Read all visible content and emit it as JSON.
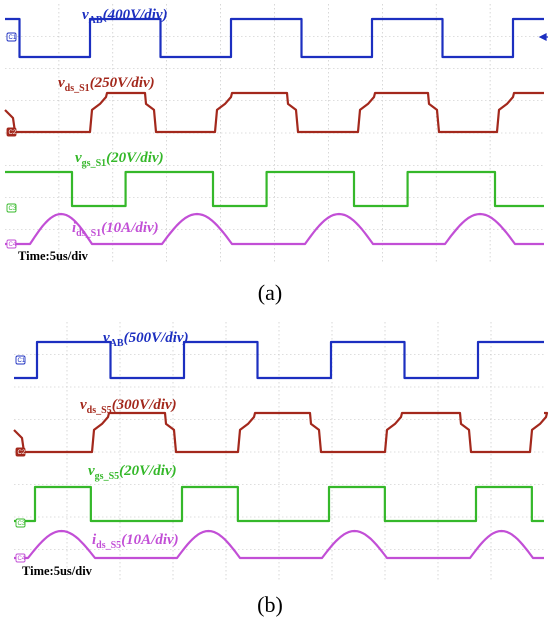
{
  "chart_data": [
    {
      "type": "line",
      "caption": "(a)",
      "time_label": "Time:5us/div",
      "grid": true,
      "series": [
        {
          "name": "v",
          "subscript": "AB",
          "scale": "(400V/div)",
          "color": "#1c2fc0",
          "marker": "C1",
          "wave": "square",
          "first": 90,
          "period": 141,
          "duty": 0.5,
          "start_high": true
        },
        {
          "name": "v",
          "subscript": "ds_S1",
          "scale": "(250V/div)",
          "color": "#a3281c",
          "marker": "C2",
          "wave": "drain",
          "rises": [
            90,
            215,
            358,
            497
          ],
          "falls": [
            145,
            287,
            428
          ]
        },
        {
          "name": "v",
          "subscript": "gs_S1",
          "scale": "(20V/div)",
          "color": "#35b82a",
          "marker": "C3",
          "wave": "square",
          "first": 72,
          "period": 141,
          "duty": 0.38,
          "start_high": true
        },
        {
          "name": "i",
          "subscript": "ds_S1",
          "scale": "(10A/div)",
          "color": "#c24fd6",
          "marker": "C4",
          "wave": "current",
          "humps": [
            [
              30,
              92
            ],
            [
              162,
              232
            ],
            [
              305,
              373
            ],
            [
              445,
              515
            ]
          ]
        }
      ]
    },
    {
      "type": "line",
      "caption": "(b)",
      "time_label": "Time:5us/div",
      "grid": true,
      "series": [
        {
          "name": "v",
          "subscript": "AB",
          "scale": "(500V/div)",
          "color": "#1c2fc0",
          "marker": "C1",
          "wave": "square",
          "first": 37,
          "period": 147,
          "duty": 0.5,
          "start_high": false
        },
        {
          "name": "v",
          "subscript": "ds_S5",
          "scale": "(300V/div)",
          "color": "#a3281c",
          "marker": "C2",
          "wave": "drain",
          "rises": [
            92,
            238,
            385,
            530
          ],
          "falls": [
            165,
            310,
            460
          ]
        },
        {
          "name": "v",
          "subscript": "gs_S5",
          "scale": "(20V/div)",
          "color": "#35b82a",
          "marker": "C3",
          "wave": "square",
          "first": 35,
          "period": 147,
          "duty": 0.38,
          "start_high": false
        },
        {
          "name": "i",
          "subscript": "ds_S5",
          "scale": "(10A/div)",
          "color": "#c24fd6",
          "marker": "C4",
          "wave": "current",
          "humps": [
            [
              28,
              95
            ],
            [
              177,
              240
            ],
            [
              322,
              387
            ],
            [
              470,
              533
            ]
          ]
        }
      ]
    }
  ]
}
